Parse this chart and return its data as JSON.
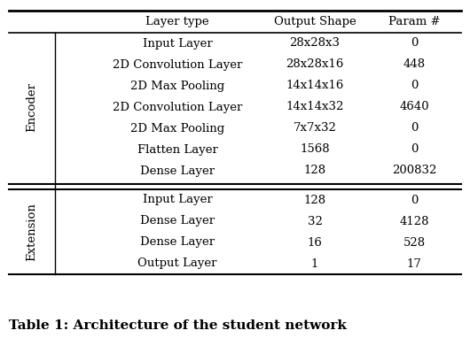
{
  "header": [
    "Layer type",
    "Output Shape",
    "Param #"
  ],
  "encoder_label": "Encoder",
  "extension_label": "Extension",
  "encoder_rows": [
    [
      "Input Layer",
      "28x28x3",
      "0"
    ],
    [
      "2D Convolution Layer",
      "28x28x16",
      "448"
    ],
    [
      "2D Max Pooling",
      "14x14x16",
      "0"
    ],
    [
      "2D Convolution Layer",
      "14x14x32",
      "4640"
    ],
    [
      "2D Max Pooling",
      "7x7x32",
      "0"
    ],
    [
      "Flatten Layer",
      "1568",
      "0"
    ],
    [
      "Dense Layer",
      "128",
      "200832"
    ]
  ],
  "extension_rows": [
    [
      "Input Layer",
      "128",
      "0"
    ],
    [
      "Dense Layer",
      "32",
      "4128"
    ],
    [
      "Dense Layer",
      "16",
      "528"
    ],
    [
      "Output Layer",
      "1",
      "17"
    ]
  ],
  "caption": "Table 1: Architecture of the student network",
  "bg_color": "#ffffff",
  "text_color": "#000000",
  "font_size": 9.5,
  "caption_font_size": 11.0
}
